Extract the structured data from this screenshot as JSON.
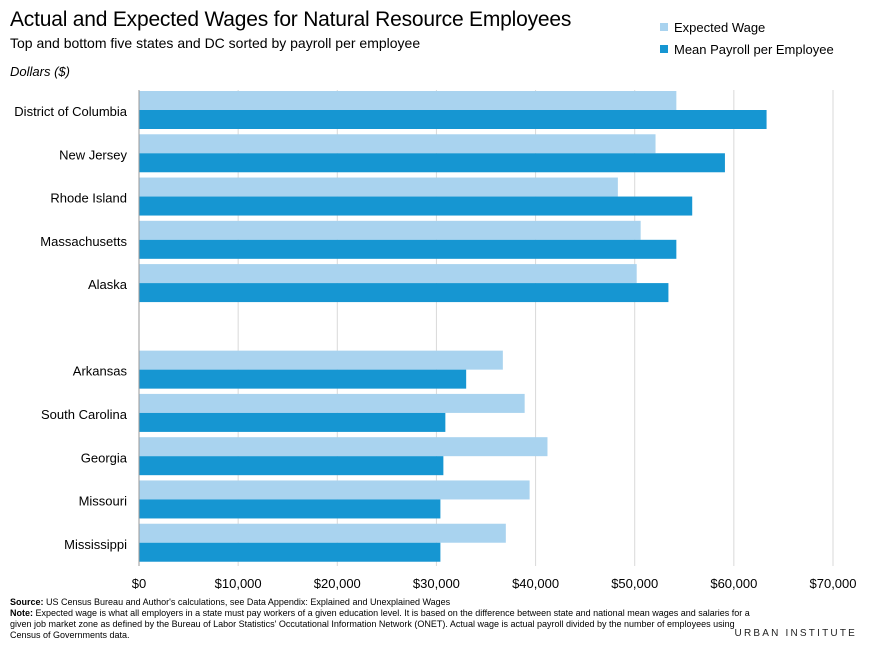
{
  "title": "Actual and Expected Wages for Natural Resource Employees",
  "subtitle": "Top and bottom five states and DC sorted by payroll per employee",
  "footer": {
    "source_label": "Source:",
    "source_text": "US Census Bureau and Author's calculations, see Data Appendix: Explained and Unexplained Wages",
    "note_label": "Note:",
    "note_text": "Expected wage is what all employers in a state must pay workers of a given education level. It is based on the difference between state and national mean wages and salaries for a given job market zone as defined by the Bureau of Labor Statistics' Occutational Information Network (ONET). Actual wage is actual payroll divided by the number of employees using Census of Governments data."
  },
  "brand": "URBAN INSTITUTE",
  "colors": {
    "expected": "#a9d3ef",
    "actual": "#1696d2",
    "grid": "#d9d9d9",
    "axis": "#999999"
  },
  "chart_data": {
    "type": "bar",
    "orientation": "horizontal",
    "ylabel": "Dollars ($)",
    "categories": [
      "District of Columbia",
      "New Jersey",
      "Rhode Island",
      "Massachusetts",
      "Alaska",
      "",
      "Arkansas",
      "South Carolina",
      "Georgia",
      "Missouri",
      "Mississippi"
    ],
    "series": [
      {
        "name": "Expected Wage",
        "values": [
          54200,
          52100,
          48300,
          50600,
          50200,
          null,
          36700,
          38900,
          41200,
          39400,
          37000
        ]
      },
      {
        "name": "Mean Payroll per Employee",
        "values": [
          63300,
          59100,
          55800,
          54200,
          53400,
          null,
          33000,
          30900,
          30700,
          30400,
          30400
        ]
      }
    ],
    "xlim": [
      0,
      70000
    ],
    "ticks": [
      0,
      10000,
      20000,
      30000,
      40000,
      50000,
      60000,
      70000
    ],
    "tick_labels": [
      "$0",
      "$10,000",
      "$20,000",
      "$30,000",
      "$40,000",
      "$50,000",
      "$60,000",
      "$70,000"
    ],
    "grid": true,
    "legend_position": "top-right"
  }
}
